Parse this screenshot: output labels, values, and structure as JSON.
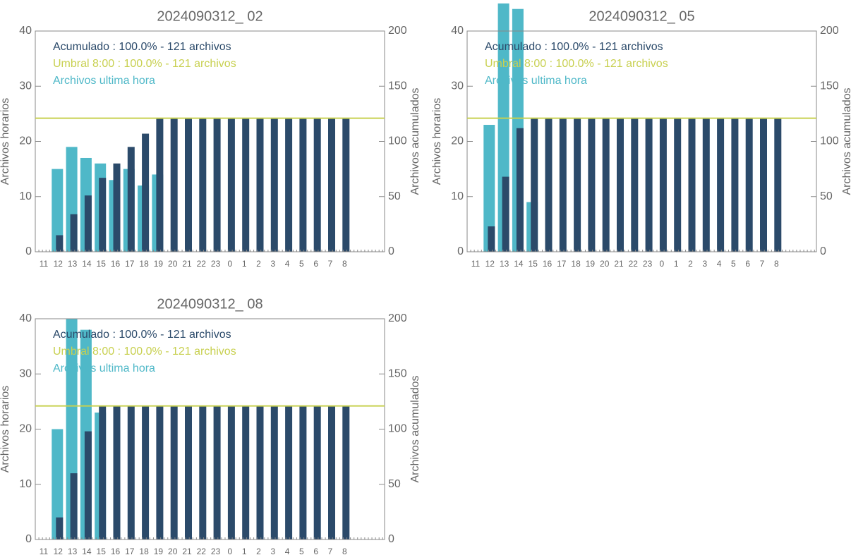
{
  "chart_data": [
    {
      "type": "bar",
      "title": "2024090312_ 02",
      "categories": [
        "11",
        "12",
        "13",
        "14",
        "15",
        "16",
        "17",
        "18",
        "19",
        "20",
        "21",
        "22",
        "23",
        "0",
        "1",
        "2",
        "3",
        "4",
        "5",
        "6",
        "7",
        "8"
      ],
      "series": [
        {
          "name": "Archivos ultima hora",
          "color": "#4fb8c8",
          "values": [
            0,
            15,
            19,
            17,
            16,
            13,
            15,
            12,
            14,
            0,
            0,
            0,
            0,
            0,
            0,
            0,
            0,
            0,
            0,
            0,
            0,
            0
          ]
        },
        {
          "name": "Acumulado : 100.0% - 121 archivos",
          "color": "#2b4a6a",
          "axis": "y2",
          "values": [
            0,
            15,
            34,
            51,
            67,
            80,
            95,
            107,
            121,
            121,
            121,
            121,
            121,
            121,
            121,
            121,
            121,
            121,
            121,
            121,
            121,
            121
          ]
        }
      ],
      "threshold": {
        "name": "Umbral 8:00 : 100.0% - 121 archivos",
        "value": 121,
        "color": "#c8d050"
      },
      "ylabel": "Archivos horarios",
      "y2label": "Archivos acumulados",
      "ylim": [
        0,
        40
      ],
      "yticks": [
        0,
        10,
        20,
        30,
        40
      ],
      "y2lim": [
        0,
        200
      ],
      "y2ticks": [
        0,
        50,
        100,
        150,
        200
      ]
    },
    {
      "type": "bar",
      "title": "2024090312_ 05",
      "categories": [
        "11",
        "12",
        "13",
        "14",
        "15",
        "16",
        "17",
        "18",
        "19",
        "20",
        "21",
        "22",
        "23",
        "0",
        "1",
        "2",
        "3",
        "4",
        "5",
        "6",
        "7",
        "8"
      ],
      "series": [
        {
          "name": "Archivos ultima hora",
          "color": "#4fb8c8",
          "values": [
            0,
            23,
            45,
            44,
            9,
            0,
            0,
            0,
            0,
            0,
            0,
            0,
            0,
            0,
            0,
            0,
            0,
            0,
            0,
            0,
            0,
            0
          ]
        },
        {
          "name": "Acumulado : 100.0% - 121 archivos",
          "color": "#2b4a6a",
          "axis": "y2",
          "values": [
            0,
            23,
            68,
            112,
            121,
            121,
            121,
            121,
            121,
            121,
            121,
            121,
            121,
            121,
            121,
            121,
            121,
            121,
            121,
            121,
            121,
            121
          ]
        }
      ],
      "threshold": {
        "name": "Umbral 8:00 : 100.0% - 121 archivos",
        "value": 121,
        "color": "#c8d050"
      },
      "ylabel": "Archivos horarios",
      "y2label": "Archivos acumulados",
      "ylim": [
        0,
        40
      ],
      "yticks": [
        0,
        10,
        20,
        30,
        40
      ],
      "y2lim": [
        0,
        200
      ],
      "y2ticks": [
        0,
        50,
        100,
        150,
        200
      ]
    },
    {
      "type": "bar",
      "title": "2024090312_ 08",
      "categories": [
        "11",
        "12",
        "13",
        "14",
        "15",
        "16",
        "17",
        "18",
        "19",
        "20",
        "21",
        "22",
        "23",
        "0",
        "1",
        "2",
        "3",
        "4",
        "5",
        "6",
        "7",
        "8"
      ],
      "series": [
        {
          "name": "Archivos ultima hora",
          "color": "#4fb8c8",
          "values": [
            0,
            20,
            40,
            38,
            23,
            0,
            0,
            0,
            0,
            0,
            0,
            0,
            0,
            0,
            0,
            0,
            0,
            0,
            0,
            0,
            0,
            0
          ]
        },
        {
          "name": "Acumulado : 100.0% - 121 archivos",
          "color": "#2b4a6a",
          "axis": "y2",
          "values": [
            0,
            20,
            60,
            98,
            121,
            121,
            121,
            121,
            121,
            121,
            121,
            121,
            121,
            121,
            121,
            121,
            121,
            121,
            121,
            121,
            121,
            121
          ]
        }
      ],
      "threshold": {
        "name": "Umbral 8:00 : 100.0% - 121 archivos",
        "value": 121,
        "color": "#c8d050"
      },
      "ylabel": "Archivos horarios",
      "y2label": "Archivos acumulados",
      "ylim": [
        0,
        40
      ],
      "yticks": [
        0,
        10,
        20,
        30,
        40
      ],
      "y2lim": [
        0,
        200
      ],
      "y2ticks": [
        0,
        50,
        100,
        150,
        200
      ]
    }
  ]
}
